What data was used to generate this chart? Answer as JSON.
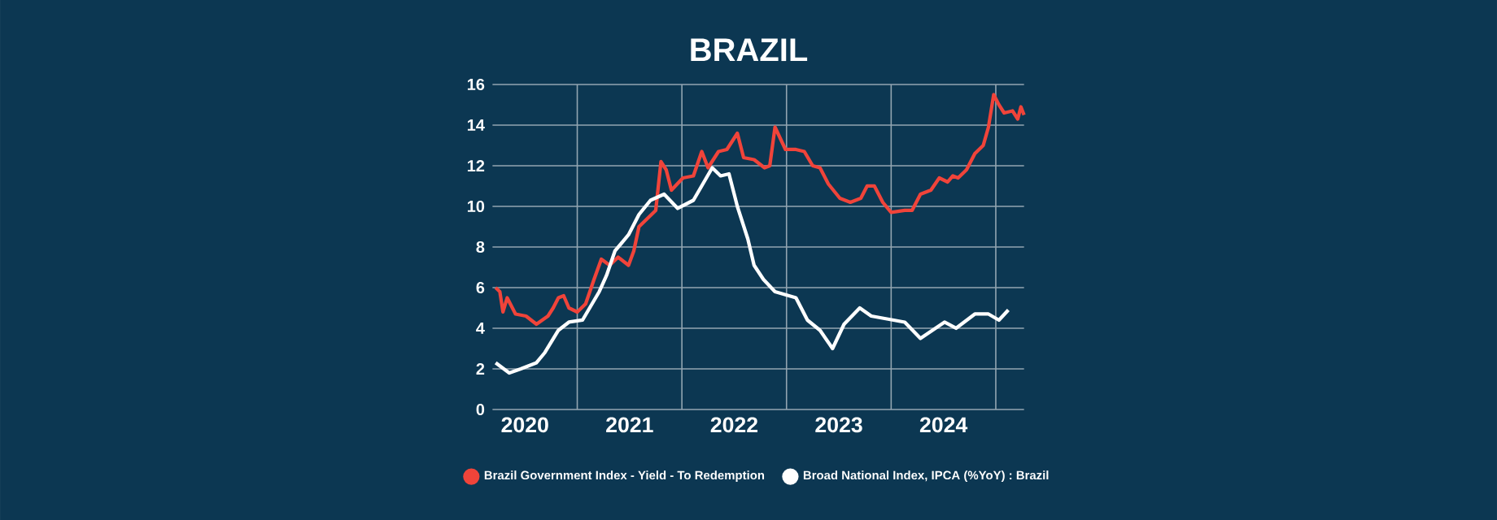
{
  "chart_data": {
    "type": "line",
    "title": "BRAZIL",
    "xlim": [
      2020.19,
      2025.27
    ],
    "ylim": [
      0,
      16
    ],
    "xticks": [
      {
        "value": 2020.5,
        "label": "2020"
      },
      {
        "value": 2021.5,
        "label": "2021"
      },
      {
        "value": 2022.5,
        "label": "2022"
      },
      {
        "value": 2023.5,
        "label": "2023"
      },
      {
        "value": 2024.5,
        "label": "2024"
      },
      {
        "value": 2021,
        "label": null
      },
      {
        "value": 2022,
        "label": null
      },
      {
        "value": 2023,
        "label": null
      },
      {
        "value": 2024,
        "label": null
      },
      {
        "value": 2025,
        "label": null
      }
    ],
    "yticks": [
      0,
      2,
      4,
      6,
      8,
      10,
      12,
      14,
      16
    ],
    "grid": true,
    "legend": "bottom",
    "marker": "none",
    "line_style": "solid",
    "series": [
      {
        "name": "Brazil Government Index - Yield - To Redemption",
        "color": "#f0443a",
        "x": [
          2020.22,
          2020.26,
          2020.29,
          2020.33,
          2020.41,
          2020.51,
          2020.61,
          2020.72,
          2020.77,
          2020.82,
          2020.87,
          2020.92,
          2021.0,
          2021.08,
          2021.16,
          2021.23,
          2021.31,
          2021.39,
          2021.49,
          2021.54,
          2021.59,
          2021.75,
          2021.8,
          2021.85,
          2021.9,
          2022.01,
          2022.11,
          2022.19,
          2022.25,
          2022.35,
          2022.43,
          2022.53,
          2022.59,
          2022.69,
          2022.79,
          2022.84,
          2022.89,
          2022.99,
          2023.09,
          2023.17,
          2023.25,
          2023.32,
          2023.4,
          2023.51,
          2023.61,
          2023.71,
          2023.77,
          2023.84,
          2023.92,
          2024.0,
          2024.13,
          2024.2,
          2024.28,
          2024.38,
          2024.46,
          2024.54,
          2024.59,
          2024.64,
          2024.72,
          2024.8,
          2024.88,
          2024.93,
          2024.98,
          2025.03,
          2025.08,
          2025.16,
          2025.21,
          2025.24,
          2025.27
        ],
        "values": [
          6.0,
          5.8,
          4.8,
          5.5,
          4.7,
          4.6,
          4.2,
          4.6,
          5.0,
          5.5,
          5.6,
          5.0,
          4.8,
          5.2,
          6.4,
          7.4,
          7.1,
          7.5,
          7.1,
          7.8,
          9.0,
          9.8,
          12.2,
          11.8,
          10.8,
          11.4,
          11.5,
          12.7,
          11.9,
          12.7,
          12.8,
          13.6,
          12.4,
          12.3,
          11.9,
          12.0,
          13.9,
          12.8,
          12.8,
          12.7,
          12.0,
          11.9,
          11.1,
          10.4,
          10.2,
          10.4,
          11.0,
          11.0,
          10.2,
          9.7,
          9.8,
          9.8,
          10.6,
          10.8,
          11.4,
          11.2,
          11.5,
          11.4,
          11.8,
          12.6,
          13.0,
          13.9,
          15.5,
          15.0,
          14.6,
          14.7,
          14.3,
          14.9,
          14.5
        ]
      },
      {
        "name": "Broad National Index, IPCA (%YoY) : Brazil",
        "color": "#ffffff",
        "x": [
          2020.22,
          2020.35,
          2020.46,
          2020.61,
          2020.69,
          2020.82,
          2020.92,
          2021.05,
          2021.21,
          2021.28,
          2021.36,
          2021.49,
          2021.59,
          2021.7,
          2021.83,
          2021.96,
          2022.11,
          2022.29,
          2022.37,
          2022.45,
          2022.53,
          2022.63,
          2022.69,
          2022.78,
          2022.89,
          2023.09,
          2023.2,
          2023.32,
          2023.44,
          2023.55,
          2023.7,
          2023.81,
          2024.13,
          2024.28,
          2024.51,
          2024.62,
          2024.8,
          2024.93,
          2025.03,
          2025.12
        ],
        "values": [
          2.3,
          1.8,
          2.0,
          2.3,
          2.8,
          3.9,
          4.3,
          4.4,
          5.8,
          6.6,
          7.8,
          8.6,
          9.6,
          10.3,
          10.6,
          9.9,
          10.3,
          11.9,
          11.5,
          11.6,
          10.0,
          8.4,
          7.1,
          6.4,
          5.8,
          5.5,
          4.4,
          3.9,
          3.0,
          4.2,
          5.0,
          4.6,
          4.3,
          3.5,
          4.3,
          4.0,
          4.7,
          4.7,
          4.4,
          4.9
        ]
      }
    ]
  }
}
